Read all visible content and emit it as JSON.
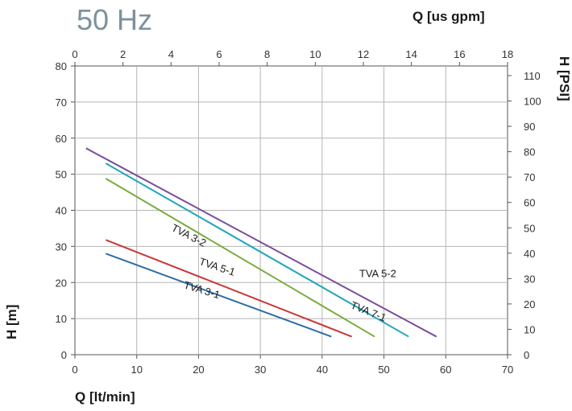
{
  "title": "50 Hz",
  "chart_data": {
    "type": "line",
    "title": "50 Hz",
    "xlabel": "Q [lt/min]",
    "ylabel": "H [m]",
    "x2label": "Q [us gpm]",
    "y2label": "H [PSI]",
    "xlim": [
      0,
      70
    ],
    "ylim": [
      0,
      80
    ],
    "x2lim": [
      0,
      18
    ],
    "y2lim": [
      0,
      113.8
    ],
    "xticks": [
      0,
      10,
      20,
      30,
      40,
      50,
      60,
      70
    ],
    "yticks": [
      0,
      10,
      20,
      30,
      40,
      50,
      60,
      70,
      80
    ],
    "x2ticks": [
      0,
      2,
      4,
      6,
      8,
      10,
      12,
      14,
      16,
      18
    ],
    "y2ticks": [
      0,
      10,
      20,
      30,
      40,
      50,
      60,
      70,
      80,
      90,
      100,
      110
    ],
    "grid": true,
    "series": [
      {
        "name": "TVA 3-1",
        "color": "#2e6da4",
        "x": [
          5,
          41.5
        ],
        "y": [
          28,
          5
        ],
        "label_at": [
          17.5,
          18.5
        ],
        "label_rot": 17
      },
      {
        "name": "TVA 5-1",
        "color": "#c9383a",
        "x": [
          5,
          44.8
        ],
        "y": [
          31.8,
          5
        ],
        "label_at": [
          20,
          25
        ],
        "label_rot": 18
      },
      {
        "name": "TVA 3-2",
        "color": "#7aab3c",
        "x": [
          5,
          48.5
        ],
        "y": [
          48.8,
          5
        ],
        "label_at": [
          15.5,
          34.5
        ],
        "label_rot": 27
      },
      {
        "name": "TVA 7-1",
        "color": "#1fa7b8",
        "x": [
          5,
          54
        ],
        "y": [
          53,
          5
        ],
        "label_at": [
          44.5,
          13
        ],
        "label_rot": 22
      },
      {
        "name": "TVA 5-2",
        "color": "#7b4e9a",
        "x": [
          1.8,
          58.5
        ],
        "y": [
          57.2,
          5
        ],
        "label_at": [
          46,
          21.5
        ],
        "label_rot": 0
      }
    ]
  }
}
